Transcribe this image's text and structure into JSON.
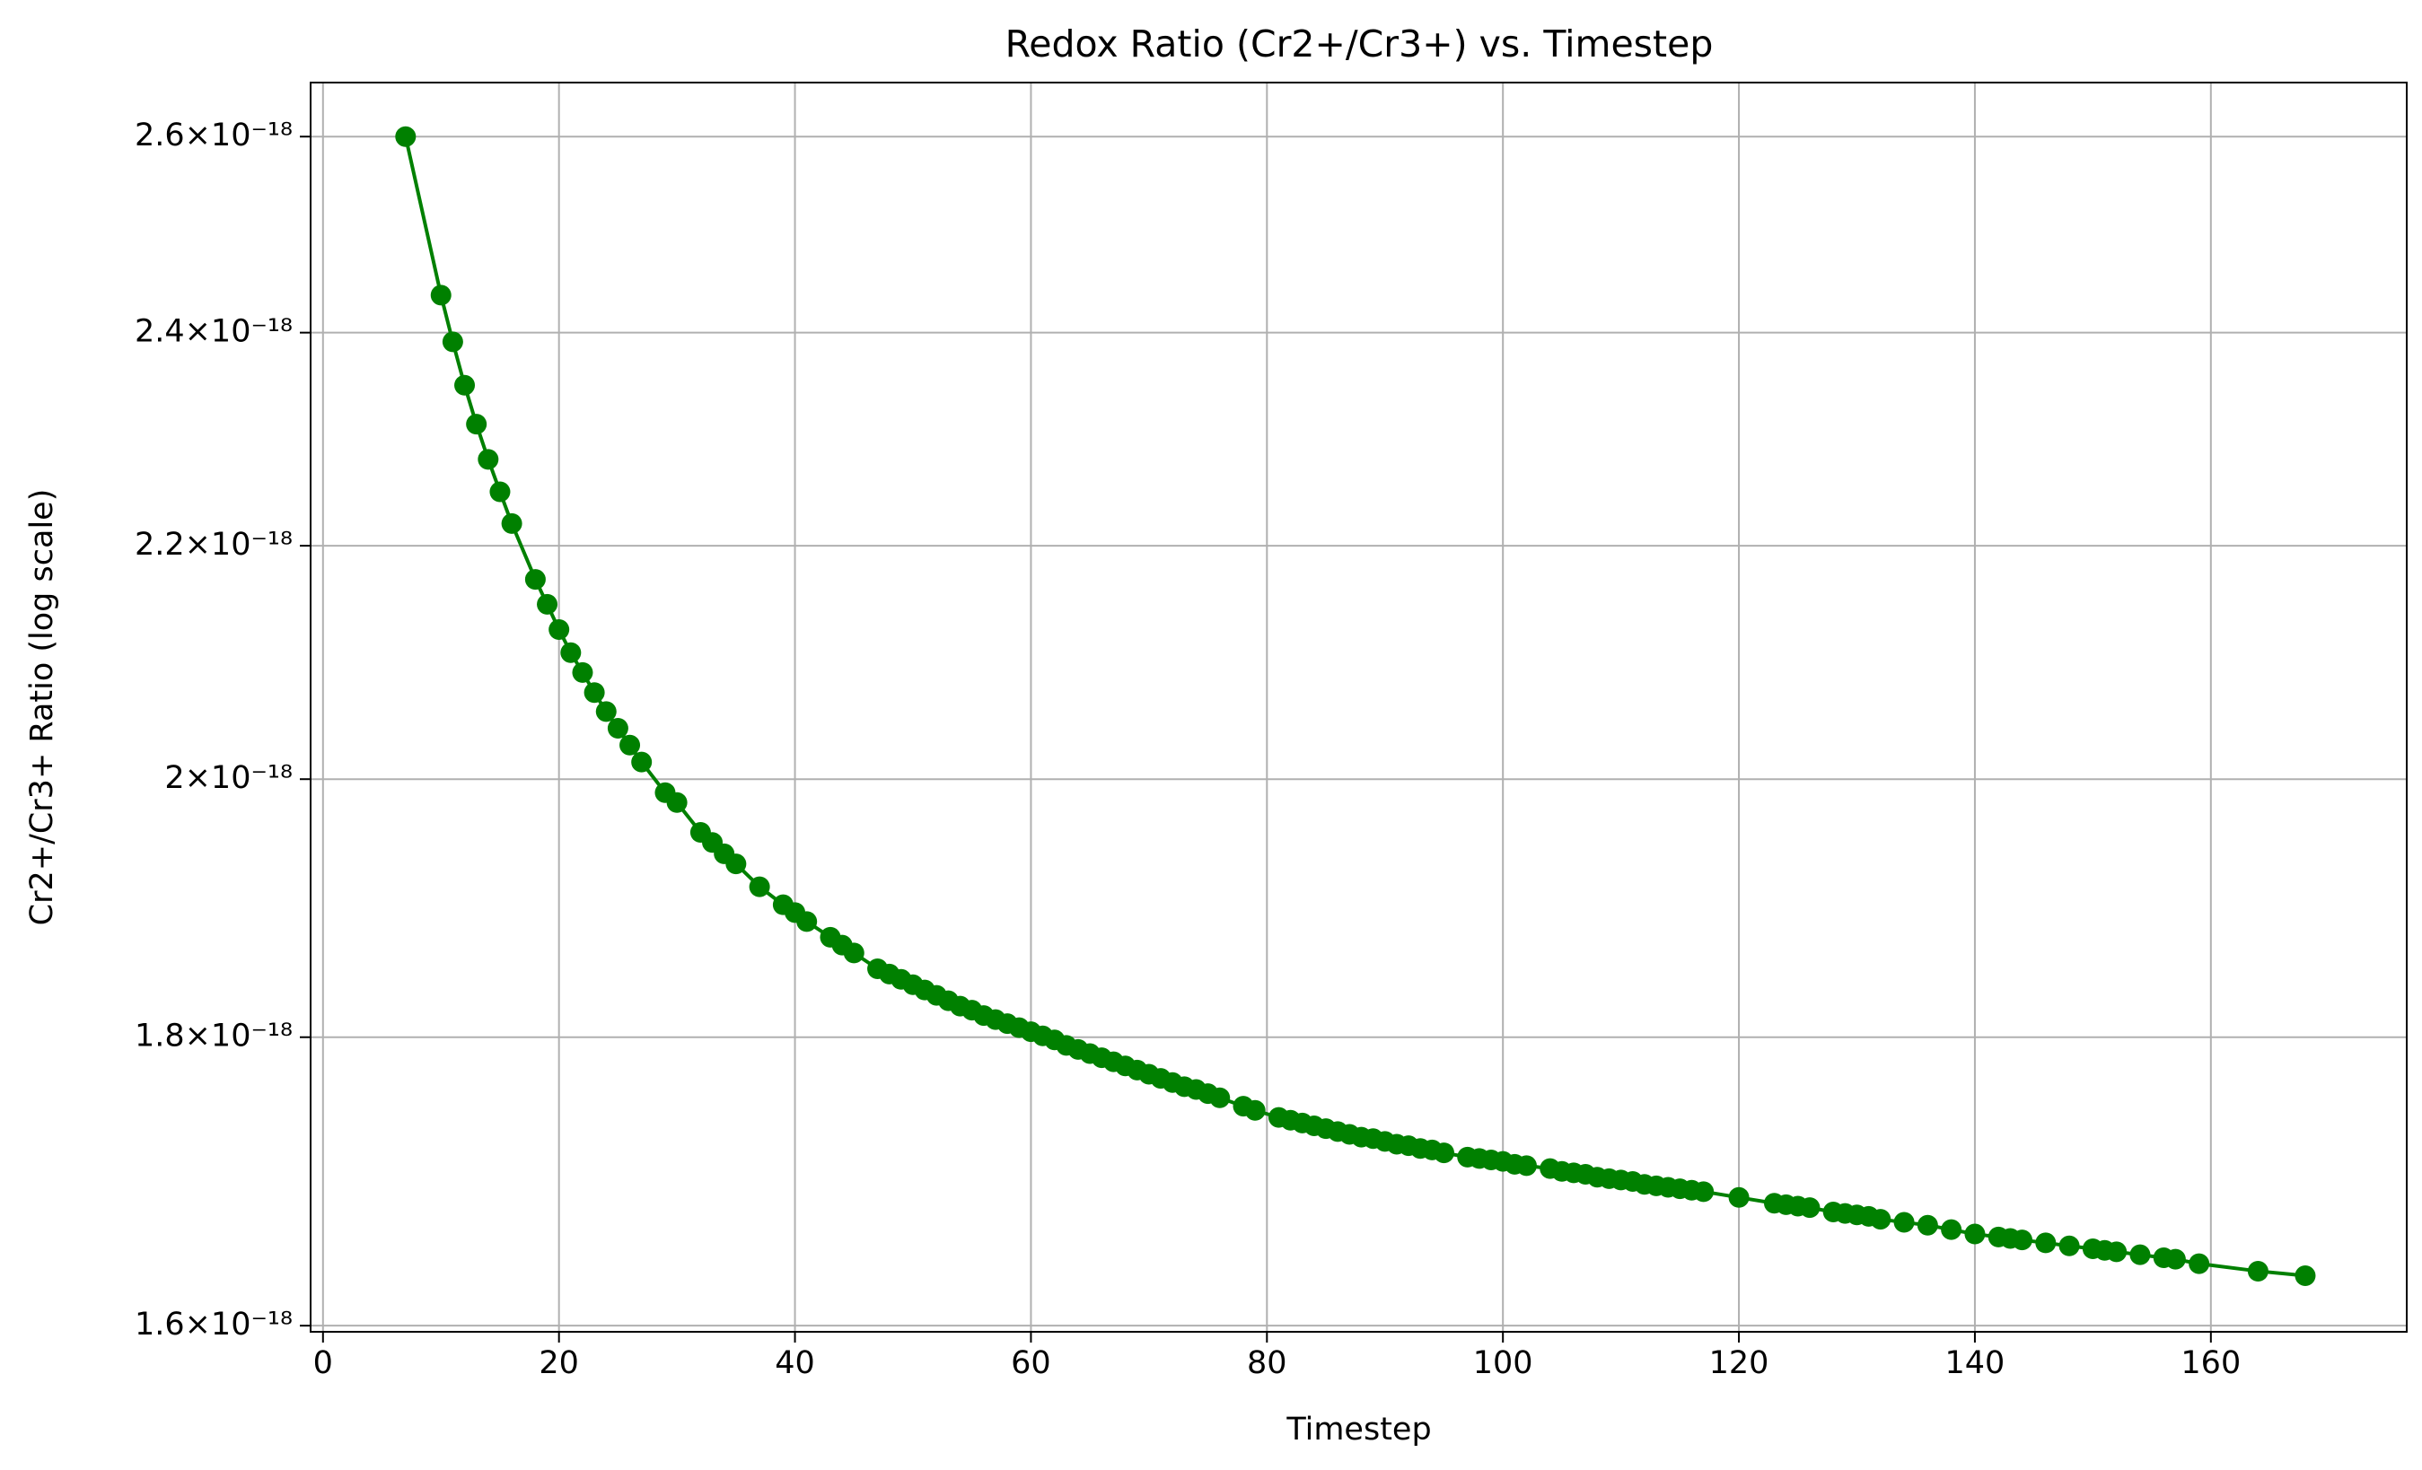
{
  "chart_data": {
    "type": "line",
    "title": "Redox Ratio (Cr2+/Cr3+) vs. Timestep",
    "xlabel": "Timestep",
    "ylabel": "Cr2+/Cr3+ Ratio (log scale)",
    "yscale": "log",
    "grid": true,
    "x": [
      7,
      10,
      11,
      12,
      13,
      14,
      15,
      16,
      18,
      19,
      20,
      21,
      22,
      23,
      24,
      25,
      26,
      27,
      29,
      30,
      32,
      33,
      34,
      35,
      37,
      39,
      40,
      41,
      43,
      44,
      45,
      47,
      48,
      49,
      50,
      51,
      52,
      53,
      54,
      55,
      56,
      57,
      58,
      59,
      60,
      61,
      62,
      63,
      64,
      65,
      66,
      67,
      68,
      69,
      70,
      71,
      72,
      73,
      74,
      75,
      76,
      78,
      79,
      81,
      82,
      83,
      84,
      85,
      86,
      87,
      88,
      89,
      90,
      91,
      92,
      93,
      94,
      95,
      97,
      98,
      99,
      100,
      101,
      102,
      104,
      105,
      106,
      107,
      108,
      109,
      110,
      111,
      112,
      113,
      114,
      115,
      116,
      117,
      120,
      123,
      124,
      125,
      126,
      128,
      129,
      130,
      131,
      132,
      134,
      136,
      138,
      140,
      142,
      143,
      144,
      146,
      148,
      150,
      151,
      152,
      154,
      156,
      157,
      159,
      164,
      168
    ],
    "series": [
      {
        "color": "#008000",
        "values": [
          2.6e-18,
          2.437e-18,
          2.391e-18,
          2.349e-18,
          2.312e-18,
          2.279e-18,
          2.249e-18,
          2.22e-18,
          2.17e-18,
          2.148e-18,
          2.126e-18,
          2.106e-18,
          2.089e-18,
          2.072e-18,
          2.056e-18,
          2.042e-18,
          2.028e-18,
          2.014e-18,
          1.989e-18,
          1.981e-18,
          1.957e-18,
          1.949e-18,
          1.94e-18,
          1.932e-18,
          1.914e-18,
          1.9e-18,
          1.894e-18,
          1.887e-18,
          1.875e-18,
          1.869e-18,
          1.863e-18,
          1.851e-18,
          1.847e-18,
          1.843e-18,
          1.839e-18,
          1.835e-18,
          1.831e-18,
          1.827e-18,
          1.823e-18,
          1.82e-18,
          1.816e-18,
          1.813e-18,
          1.81e-18,
          1.807e-18,
          1.804e-18,
          1.801e-18,
          1.798e-18,
          1.794e-18,
          1.791e-18,
          1.788e-18,
          1.785e-18,
          1.782e-18,
          1.779e-18,
          1.776e-18,
          1.773e-18,
          1.77e-18,
          1.767e-18,
          1.764e-18,
          1.762e-18,
          1.759e-18,
          1.756e-18,
          1.75e-18,
          1.747e-18,
          1.742e-18,
          1.74e-18,
          1.738e-18,
          1.736e-18,
          1.734e-18,
          1.732e-18,
          1.73e-18,
          1.728e-18,
          1.727e-18,
          1.725e-18,
          1.723e-18,
          1.722e-18,
          1.72e-18,
          1.719e-18,
          1.717e-18,
          1.714e-18,
          1.713e-18,
          1.712e-18,
          1.711e-18,
          1.709e-18,
          1.708e-18,
          1.706e-18,
          1.704e-18,
          1.703e-18,
          1.702e-18,
          1.7e-18,
          1.699e-18,
          1.698e-18,
          1.697e-18,
          1.695e-18,
          1.694e-18,
          1.693e-18,
          1.692e-18,
          1.691e-18,
          1.69e-18,
          1.686e-18,
          1.682e-18,
          1.681e-18,
          1.68e-18,
          1.679e-18,
          1.676e-18,
          1.675e-18,
          1.674e-18,
          1.673e-18,
          1.671e-18,
          1.669e-18,
          1.667e-18,
          1.664e-18,
          1.661e-18,
          1.659e-18,
          1.658e-18,
          1.657e-18,
          1.655e-18,
          1.653e-18,
          1.651e-18,
          1.65e-18,
          1.649e-18,
          1.647e-18,
          1.645e-18,
          1.644e-18,
          1.641e-18,
          1.636e-18,
          1.633e-18
        ]
      }
    ],
    "xlim": [
      -1.05,
      176.6
    ],
    "ylim": [
      1.596e-18,
      2.658e-18
    ],
    "xticks": [
      0,
      20,
      40,
      60,
      80,
      100,
      120,
      140,
      160
    ],
    "yticks": [
      {
        "value": 1.6e-18,
        "label": "1.6×10⁻¹⁸"
      },
      {
        "value": 1.8e-18,
        "label": "1.8×10⁻¹⁸"
      },
      {
        "value": 2e-18,
        "label": "2×10⁻¹⁸"
      },
      {
        "value": 2.2e-18,
        "label": "2.2×10⁻¹⁸"
      },
      {
        "value": 2.4e-18,
        "label": "2.4×10⁻¹⁸"
      },
      {
        "value": 2.6e-18,
        "label": "2.6×10⁻¹⁸"
      }
    ]
  }
}
